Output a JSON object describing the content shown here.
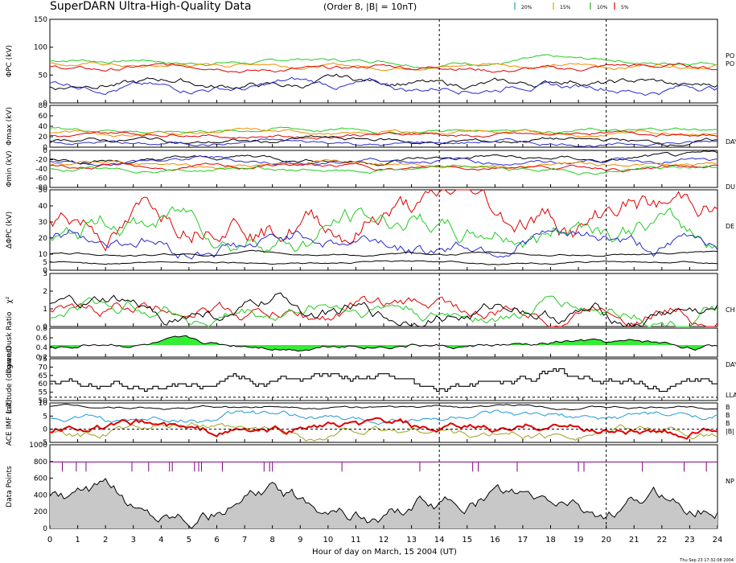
{
  "header": {
    "title": "SuperDARN Ultra-High-Quality Data",
    "subtitle": "(Order 8, |B| = 10nT)",
    "legend": [
      {
        "label": "20%",
        "color": "#1f9ad6"
      },
      {
        "label": "15%",
        "color": "#e0a800"
      },
      {
        "label": "10%",
        "color": "#22b322"
      },
      {
        "label": "5%",
        "color": "#e00000"
      }
    ]
  },
  "footer": {
    "xlabel": "Hour of day on March, 15 2004 (UT)",
    "timestamp": "Thu Sep 23 17:32:08 2004"
  },
  "colors": {
    "black": "#000000",
    "navy": "#1a1a80",
    "blue": "#2a2ad0",
    "red": "#e00000",
    "green": "#22cc22",
    "orange": "#f08c00",
    "purple": "#800080",
    "fill_grey": "#c8c8c8",
    "fill_green": "#33ee33",
    "fill_blue": "#2222cc",
    "cyan": "#1f9ad6",
    "olive": "#a0a020"
  },
  "chart_data": [
    {
      "type": "line",
      "id": "phipc",
      "ylabel": "ΦPC (kV)",
      "ylim": [
        0,
        150
      ],
      "yticks": [
        "0",
        "50",
        "100",
        "150"
      ],
      "right_labels": [
        "PO",
        "PO"
      ],
      "series": [
        {
          "color": "green",
          "base": 75,
          "amp": 5
        },
        {
          "color": "orange",
          "base": 68,
          "amp": 5
        },
        {
          "color": "red",
          "base": 63,
          "amp": 6
        },
        {
          "color": "black",
          "base": 35,
          "amp": 9
        },
        {
          "color": "blue",
          "base": 30,
          "amp": 9
        }
      ]
    },
    {
      "type": "line",
      "id": "phimax",
      "ylabel": "Φmax (kV)",
      "ylim": [
        0,
        80
      ],
      "yticks": [
        "0",
        "20",
        "40",
        "60",
        "80"
      ],
      "right_labels": [
        "DAY"
      ],
      "series": [
        {
          "color": "green",
          "base": 33,
          "amp": 5
        },
        {
          "color": "orange",
          "base": 28,
          "amp": 5
        },
        {
          "color": "red",
          "base": 24,
          "amp": 5
        },
        {
          "color": "black",
          "base": 12,
          "amp": 6
        },
        {
          "color": "blue",
          "base": 8,
          "amp": 5
        }
      ]
    },
    {
      "type": "line",
      "id": "phimin",
      "ylabel": "Φmin (kV)",
      "ylim": [
        -80,
        0
      ],
      "yticks": [
        "-80",
        "-60",
        "-40",
        "-20",
        "0"
      ],
      "right_labels": [
        "DU"
      ],
      "series": [
        {
          "color": "black",
          "base": -18,
          "amp": 7
        },
        {
          "color": "blue",
          "base": -22,
          "amp": 7
        },
        {
          "color": "orange",
          "base": -30,
          "amp": 6
        },
        {
          "color": "red",
          "base": -36,
          "amp": 6
        },
        {
          "color": "green",
          "base": -42,
          "amp": 6
        }
      ]
    },
    {
      "type": "line",
      "id": "dphipc",
      "ylabel": "ΔΦPC (kV)",
      "ylim": [
        0,
        50
      ],
      "yticks": [
        "0",
        "5",
        "10",
        "20",
        "30",
        "40",
        "50"
      ],
      "right_labels": [
        "DE"
      ],
      "series": [
        {
          "color": "red",
          "base": 36,
          "amp": 12
        },
        {
          "color": "green",
          "base": 26,
          "amp": 10
        },
        {
          "color": "blue",
          "base": 18,
          "amp": 7
        },
        {
          "color": "black",
          "base": 10,
          "amp": 1
        },
        {
          "color": "black",
          "base": 5,
          "amp": 0.8
        }
      ]
    },
    {
      "type": "line",
      "id": "chi2",
      "ylabel": "χ²",
      "ylim": [
        0,
        3
      ],
      "yticks": [
        "0",
        "1",
        "2",
        "3"
      ],
      "right_labels": [
        "CH"
      ],
      "series": [
        {
          "color": "red",
          "base": 0.9,
          "amp": 0.6
        },
        {
          "color": "green",
          "base": 0.85,
          "amp": 0.6
        },
        {
          "color": "black",
          "base": 0.8,
          "amp": 0.6
        }
      ]
    },
    {
      "type": "area",
      "id": "ratio",
      "ylabel": "Dawn/Dusk Ratio",
      "ylim": [
        0.2,
        0.8
      ],
      "yticks": [
        "0.2",
        "0.4",
        "0.6",
        "0.8"
      ],
      "right_labels": [
        "DAY"
      ],
      "series": [
        {
          "color": "black",
          "base": 0.45,
          "amp": 0.07
        }
      ]
    },
    {
      "type": "step",
      "id": "lat",
      "ylabel": "Latitude (degrees)",
      "ylim": [
        50,
        75
      ],
      "yticks": [
        "50",
        "55",
        "60",
        "65",
        "70",
        "75"
      ],
      "right_labels": [
        "LLA"
      ],
      "series": [
        {
          "color": "black",
          "base": 62,
          "amp": 4
        }
      ]
    },
    {
      "type": "line",
      "id": "imf",
      "ylabel": "ACE IMF (nT)",
      "ylim": [
        -5,
        10
      ],
      "yticks": [
        "-5",
        "0",
        "5",
        "10"
      ],
      "right_labels": [
        "B",
        "B",
        "B",
        "|B|"
      ],
      "series": [
        {
          "color": "black",
          "base": 8.5,
          "amp": 0.7
        },
        {
          "color": "cyan",
          "base": 4,
          "amp": 2
        },
        {
          "color": "olive",
          "base": -1,
          "amp": 2.5
        },
        {
          "color": "red",
          "base": 0,
          "amp": 2.5
        }
      ]
    },
    {
      "type": "area",
      "id": "points",
      "ylabel": "Data Points",
      "ylim": [
        0,
        1000
      ],
      "yticks": [
        "0",
        "200",
        "400",
        "600",
        "800",
        "1000"
      ],
      "right_labels": [
        "NP"
      ],
      "series": [
        {
          "color": "black",
          "base": 280,
          "amp": 150
        },
        {
          "color": "purple",
          "base": 795,
          "amp": 0
        }
      ]
    }
  ],
  "x_axis": {
    "xlim": [
      0,
      24
    ],
    "ticks": [
      "0",
      "1",
      "2",
      "3",
      "4",
      "5",
      "6",
      "7",
      "8",
      "9",
      "10",
      "11",
      "12",
      "13",
      "14",
      "15",
      "16",
      "17",
      "18",
      "19",
      "20",
      "21",
      "22",
      "23",
      "24"
    ],
    "dashed_at": [
      14,
      20
    ]
  }
}
